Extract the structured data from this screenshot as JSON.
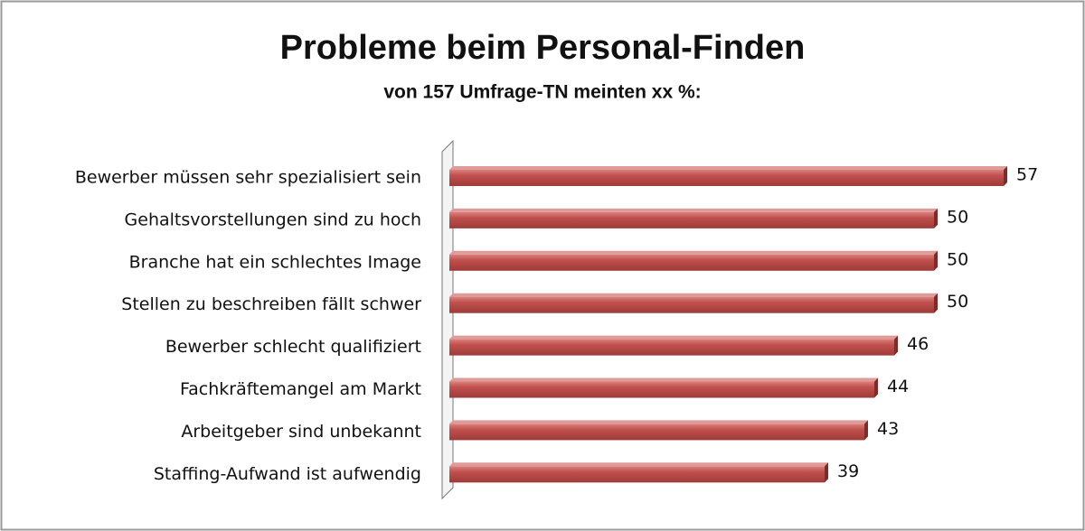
{
  "chart_data": {
    "type": "bar",
    "orientation": "horizontal",
    "title": "Probleme beim Personal-Finden",
    "subtitle": "von 157  Umfrage-TN meinten xx %:",
    "categories": [
      "Bewerber müssen sehr spezialisiert sein",
      "Gehaltsvorstellungen sind zu hoch",
      "Branche hat ein schlechtes Image",
      "Stellen zu beschreiben fällt schwer",
      "Bewerber schlecht qualifiziert",
      "Fachkräftemangel am Markt",
      "Arbeitgeber sind unbekannt",
      "Staffing-Aufwand ist aufwendig"
    ],
    "values": [
      57,
      50,
      50,
      50,
      46,
      44,
      43,
      39
    ],
    "color": "#c0504d",
    "xlim": [
      0,
      60
    ]
  }
}
